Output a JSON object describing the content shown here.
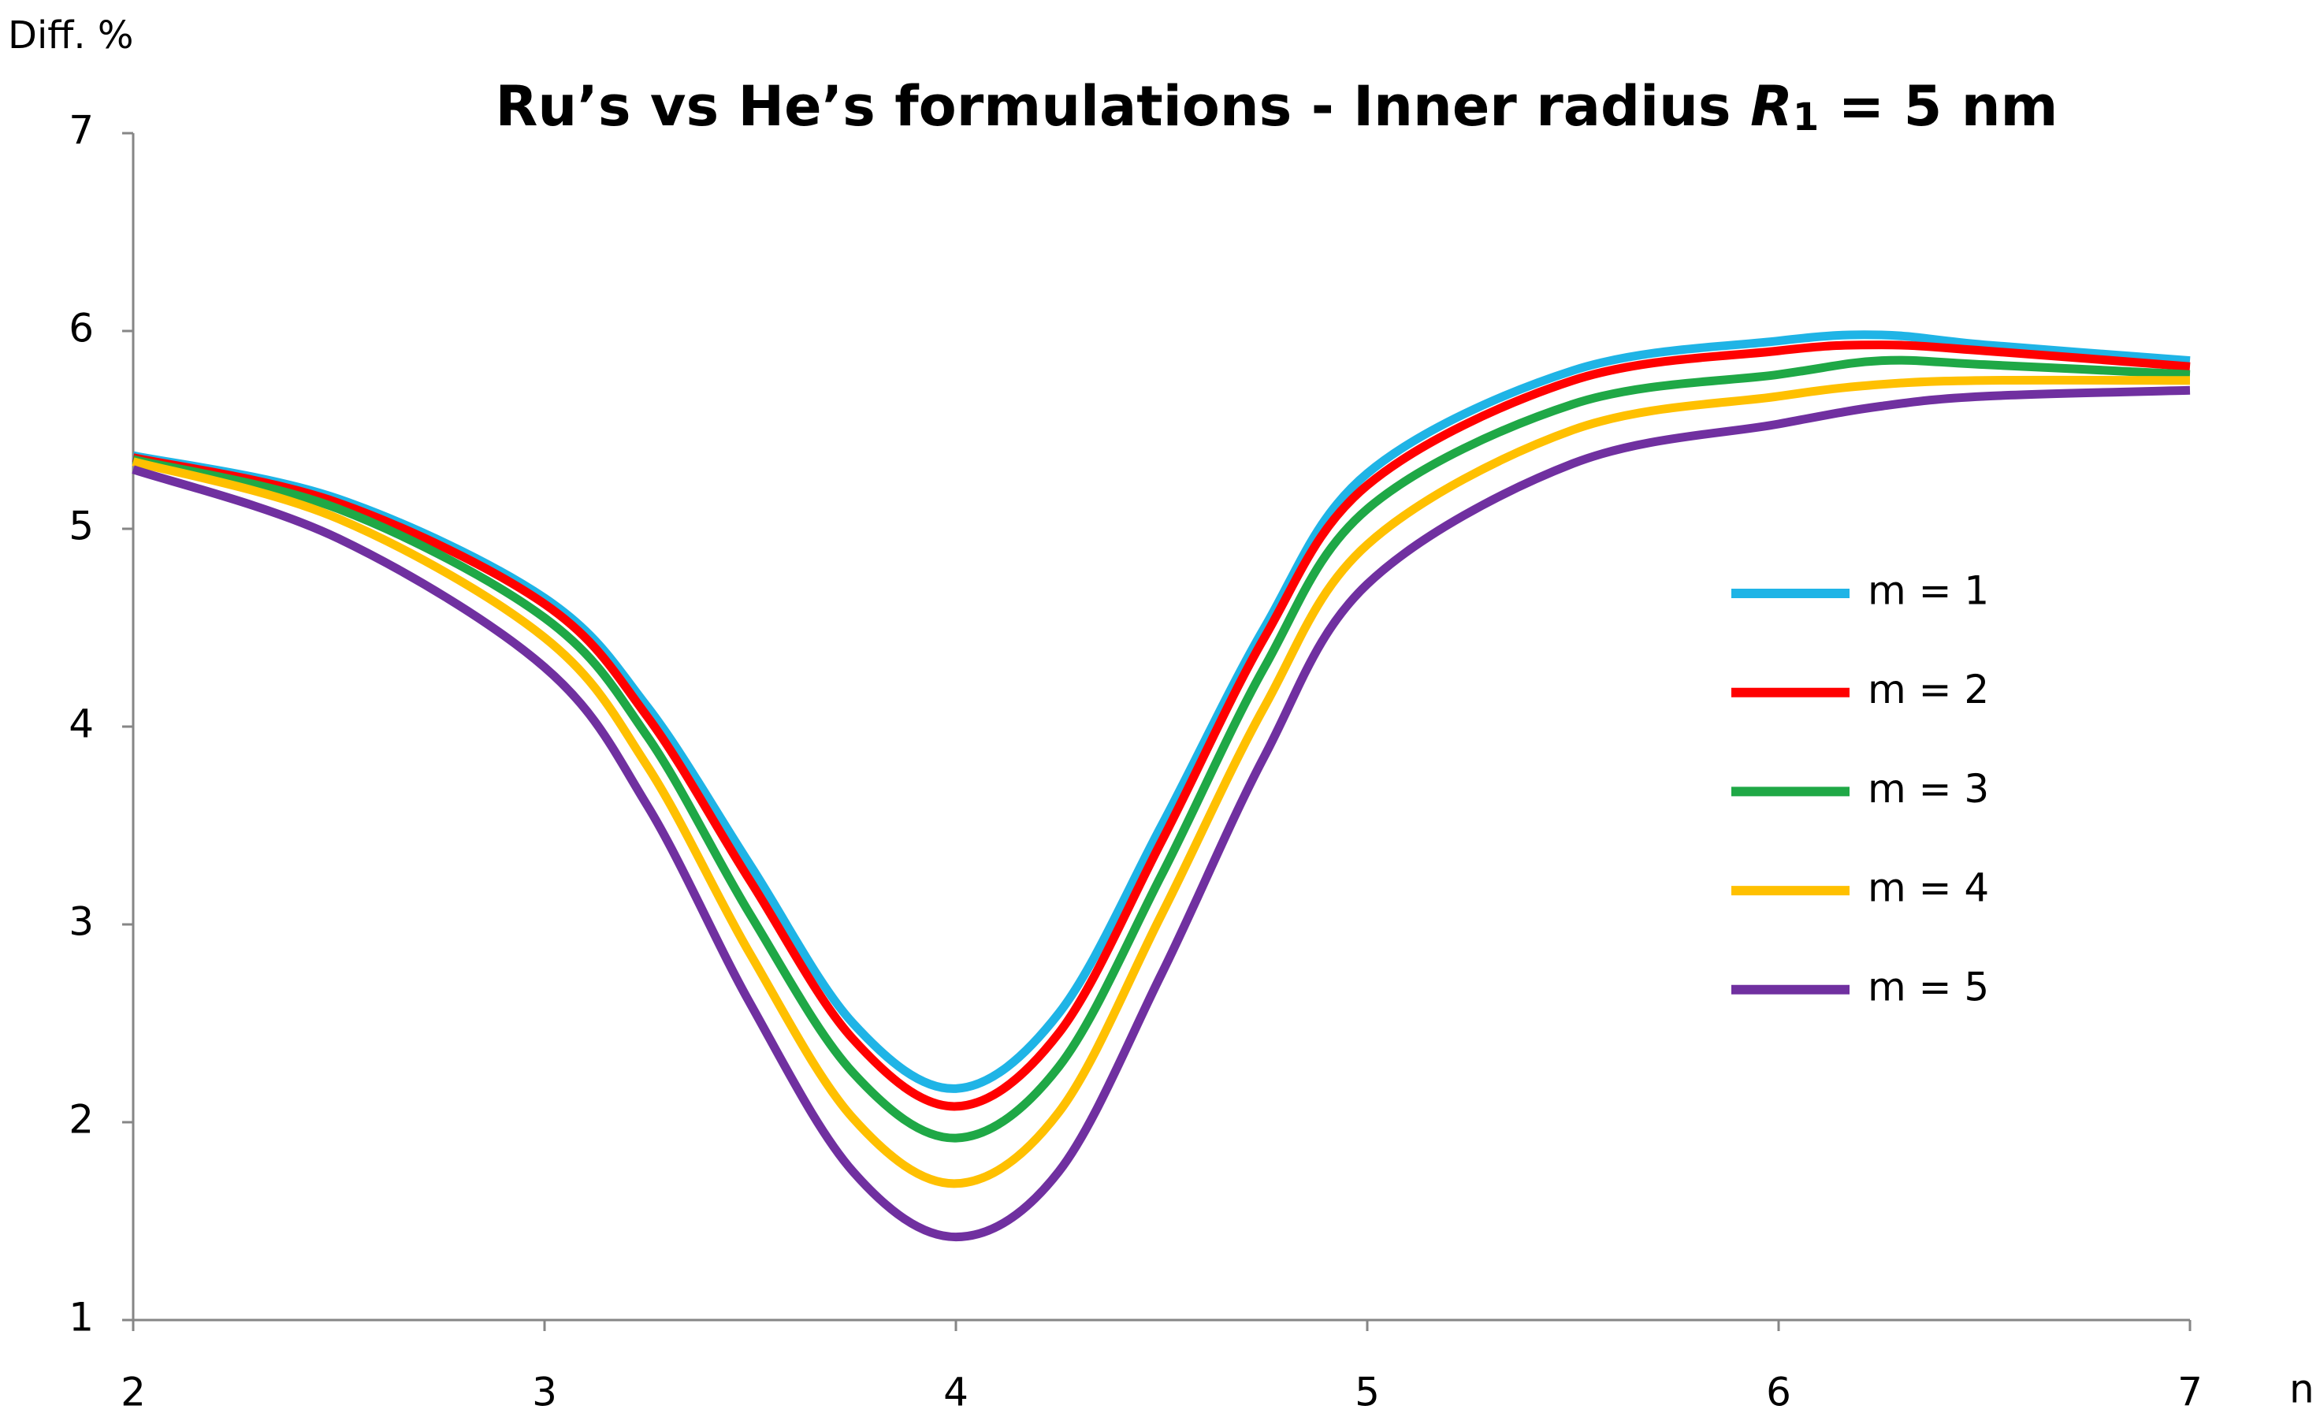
{
  "chart_data": {
    "type": "line",
    "title": [
      "Ru’s vs He’s formulations - Inner radius ",
      "R",
      "1",
      " = 5 nm"
    ],
    "y_label": "Diff. %",
    "x_label": "n",
    "x": [
      2,
      2.5,
      3,
      3.25,
      3.5,
      3.75,
      4,
      4.25,
      4.5,
      4.75,
      5,
      5.5,
      6,
      6.25,
      6.5,
      7
    ],
    "series": [
      {
        "name": "m = 1",
        "color": "#1fb4e6",
        "values": [
          5.37,
          5.15,
          4.65,
          4.1,
          3.3,
          2.5,
          2.17,
          2.55,
          3.5,
          4.5,
          5.28,
          5.8,
          5.95,
          5.98,
          5.93,
          5.85
        ]
      },
      {
        "name": "m = 2",
        "color": "#ff0000",
        "values": [
          5.36,
          5.13,
          4.62,
          4.05,
          3.22,
          2.42,
          2.08,
          2.45,
          3.42,
          4.45,
          5.22,
          5.75,
          5.9,
          5.93,
          5.9,
          5.82
        ]
      },
      {
        "name": "m = 3",
        "color": "#1fa846",
        "values": [
          5.35,
          5.1,
          4.55,
          3.95,
          3.05,
          2.25,
          1.92,
          2.28,
          3.25,
          4.3,
          5.1,
          5.63,
          5.78,
          5.85,
          5.83,
          5.78
        ]
      },
      {
        "name": "m = 4",
        "color": "#ffc000",
        "values": [
          5.34,
          5.05,
          4.45,
          3.8,
          2.85,
          2.02,
          1.69,
          2.05,
          3.05,
          4.1,
          4.92,
          5.5,
          5.67,
          5.73,
          5.75,
          5.75
        ]
      },
      {
        "name": "m = 5",
        "color": "#7030a0",
        "values": [
          5.3,
          4.95,
          4.3,
          3.6,
          2.6,
          1.75,
          1.42,
          1.75,
          2.75,
          3.85,
          4.72,
          5.33,
          5.53,
          5.62,
          5.67,
          5.7
        ]
      }
    ],
    "xlim": [
      2,
      7
    ],
    "xticks": [
      2,
      3,
      4,
      5,
      6,
      7
    ],
    "ylim": [
      1,
      7
    ],
    "yticks": [
      1,
      2,
      3,
      4,
      5,
      6,
      7
    ],
    "grid": false,
    "legend": "right"
  }
}
